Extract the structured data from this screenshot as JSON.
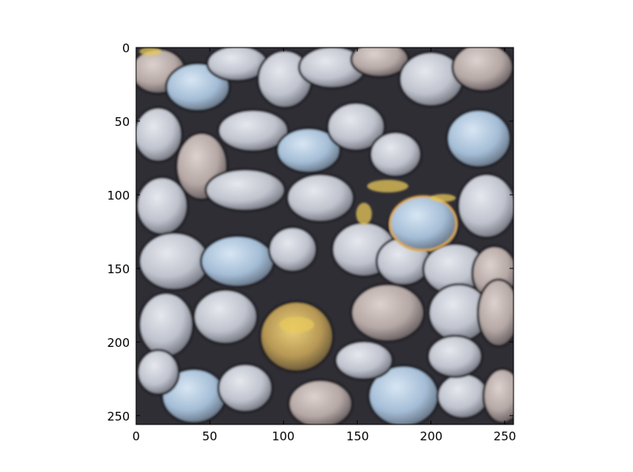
{
  "image": {
    "description": "texture of rounded pebbles / stones",
    "palette": {
      "stone_light": "#cfd3dc",
      "stone_blue": "#a9c3dc",
      "stone_warm": "#b8aaa4",
      "gap_dark": "#2b2a30",
      "highlight_yellow": "#e8c85a",
      "frame": "#000000"
    }
  },
  "axes": {
    "x_ticks": [
      "0",
      "50",
      "100",
      "150",
      "200",
      "250"
    ],
    "y_ticks": [
      "0",
      "50",
      "100",
      "150",
      "200",
      "250"
    ],
    "xlim": [
      0,
      256
    ],
    "ylim": [
      256,
      0
    ]
  }
}
